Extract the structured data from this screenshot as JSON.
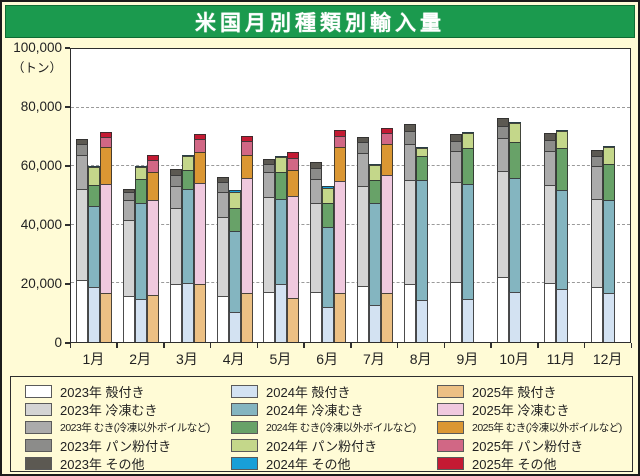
{
  "title": "米国月別種類別輸入量",
  "colors": {
    "title_bar": "#1b9a4e",
    "background": "#fffbd6",
    "plot_background": "#ffffff",
    "axis": "#2e2e2e",
    "gridline": "#9a9a9a"
  },
  "chart_data": {
    "type": "bar",
    "stacked": true,
    "title": "米国月別種類別輸入量",
    "unit_label": "（トン）",
    "ylim": [
      0,
      100000
    ],
    "yticks": [
      0,
      20000,
      40000,
      60000,
      80000,
      100000
    ],
    "ytick_labels": [
      "0",
      "20,000",
      "40,000",
      "60,000",
      "80,000",
      "100,000"
    ],
    "grid": "horizontal dashed at 20,000 intervals",
    "legend_position": "bottom box, one column per year",
    "categories": [
      "1月",
      "2月",
      "3月",
      "4月",
      "5月",
      "6月",
      "7月",
      "8月",
      "9月",
      "10月",
      "11月",
      "12月"
    ],
    "segment_order": [
      "殻付き",
      "冷凍むき",
      "むき(冷凍以外ボイルなど)",
      "パン粉付き",
      "その他"
    ],
    "series": [
      {
        "name": "2023年",
        "segments": [
          {
            "label": "殻付き",
            "color": "#ffffff",
            "values": [
              21000,
              15500,
              19500,
              15500,
              17000,
              17000,
              19000,
              19500,
              20500,
              22000,
              20000,
              18600
            ]
          },
          {
            "label": "冷凍むき",
            "color": "#d4d4d4",
            "values": [
              31000,
              26000,
              26000,
              27000,
              32000,
              30000,
              34000,
              35300,
              33700,
              35900,
              33100,
              29900
            ]
          },
          {
            "label": "むき(冷凍以外ボイルなど)",
            "color": "#ababab",
            "values": [
              11500,
              6800,
              7500,
              8300,
              8700,
              8400,
              11000,
              12200,
              10500,
              11400,
              11600,
              11200
            ]
          },
          {
            "label": "パン粉付き",
            "color": "#8c8c8a",
            "values": [
              3500,
              2400,
              3500,
              3400,
              2800,
              3600,
              3800,
              4400,
              3600,
              4000,
              3800,
              3500
            ]
          },
          {
            "label": "その他",
            "color": "#5c5952",
            "values": [
              2000,
              1300,
              2000,
              1800,
              1500,
              2000,
              1700,
              2500,
              2100,
              2600,
              2300,
              2000
            ]
          }
        ]
      },
      {
        "name": "2024年",
        "segments": [
          {
            "label": "殻付き",
            "color": "#d3e2f2",
            "values": [
              18500,
              14500,
              20000,
              10300,
              19500,
              12000,
              12600,
              14300,
              14600,
              17000,
              18100,
              16700
            ]
          },
          {
            "label": "冷凍むき",
            "color": "#84b5c0",
            "values": [
              27600,
              32500,
              32000,
              27200,
              29000,
              27000,
              34400,
              40500,
              39100,
              38600,
              33600,
              31500
            ]
          },
          {
            "label": "むき(冷凍以外ボイルなど)",
            "color": "#68a268",
            "values": [
              7200,
              8200,
              6300,
              8000,
              9000,
              8000,
              7800,
              8100,
              12100,
              12300,
              14100,
              12100
            ]
          },
          {
            "label": "パン粉付き",
            "color": "#c4d78a",
            "values": [
              6100,
              4100,
              4800,
              5500,
              5200,
              5300,
              5200,
              2900,
              5000,
              6200,
              5600,
              5800
            ]
          },
          {
            "label": "その他",
            "color": "#189fd8",
            "values": [
              300,
              300,
              400,
              400,
              300,
              500,
              300,
              400,
              300,
              300,
              300,
              300
            ]
          }
        ]
      },
      {
        "name": "2025年",
        "segments": [
          {
            "label": "殻付き",
            "color": "#ecc084",
            "values": [
              16700,
              16000,
              19500,
              16500,
              15000,
              16500,
              16700,
              null,
              null,
              null,
              null,
              null
            ]
          },
          {
            "label": "冷凍むき",
            "color": "#f0c9de",
            "values": [
              37000,
              32300,
              34500,
              39000,
              34500,
              38000,
              39800,
              null,
              null,
              null,
              null,
              null
            ]
          },
          {
            "label": "むき(冷凍以外ボイルなど)",
            "color": "#db9733",
            "values": [
              12300,
              9200,
              10500,
              8000,
              8800,
              11500,
              10500,
              null,
              null,
              null,
              null,
              null
            ]
          },
          {
            "label": "パン粉付き",
            "color": "#d16785",
            "values": [
              3500,
              4300,
              4400,
              4500,
              4200,
              4000,
              4000,
              null,
              null,
              null,
              null,
              null
            ]
          },
          {
            "label": "その他",
            "color": "#c41a33",
            "values": [
              1700,
              1500,
              1500,
              2000,
              1800,
              2000,
              1400,
              null,
              null,
              null,
              null,
              null
            ]
          }
        ]
      }
    ]
  }
}
